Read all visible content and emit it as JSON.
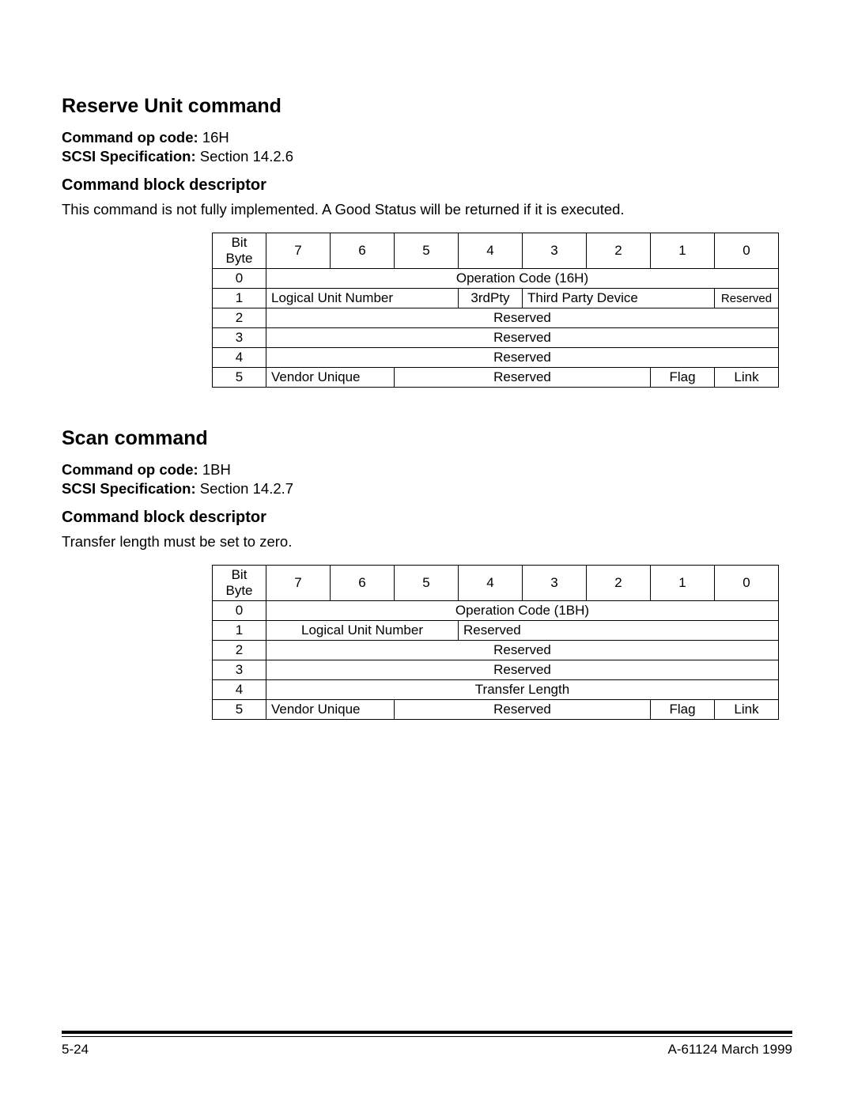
{
  "section1": {
    "title": "Reserve Unit command",
    "opcode_label": "Command op code:",
    "opcode_value": "16H",
    "spec_label": "SCSI Specification:",
    "spec_value": "Section 14.2.6",
    "cbd_title": "Command block descriptor",
    "body": "This command is not fully implemented. A Good Status will be returned if it is executed.",
    "table": {
      "header_bit": "Bit",
      "header_byte": "Byte",
      "bits": [
        "7",
        "6",
        "5",
        "4",
        "3",
        "2",
        "1",
        "0"
      ],
      "rows": {
        "r0_byte": "0",
        "r0_val": "Operation Code (16H)",
        "r1_byte": "1",
        "r1_lun": "Logical Unit Number",
        "r1_3rd": "3rdPty",
        "r1_tpd": "Third Party Device",
        "r1_rsv": "Reserved",
        "r2_byte": "2",
        "r2_val": "Reserved",
        "r3_byte": "3",
        "r3_val": "Reserved",
        "r4_byte": "4",
        "r4_val": "Reserved",
        "r5_byte": "5",
        "r5_vu": "Vendor Unique",
        "r5_rsv": "Reserved",
        "r5_flag": "Flag",
        "r5_link": "Link"
      }
    }
  },
  "section2": {
    "title": "Scan command",
    "opcode_label": "Command op code:",
    "opcode_value": "1BH",
    "spec_label": "SCSI Specification:",
    "spec_value": "Section 14.2.7",
    "cbd_title": "Command block descriptor",
    "body": "Transfer length must be set to zero.",
    "table": {
      "header_bit": "Bit",
      "header_byte": "Byte",
      "bits": [
        "7",
        "6",
        "5",
        "4",
        "3",
        "2",
        "1",
        "0"
      ],
      "rows": {
        "r0_byte": "0",
        "r0_val": "Operation Code (1BH)",
        "r1_byte": "1",
        "r1_lun": "Logical Unit Number",
        "r1_rsv": "Reserved",
        "r2_byte": "2",
        "r2_val": "Reserved",
        "r3_byte": "3",
        "r3_val": "Reserved",
        "r4_byte": "4",
        "r4_val": "Transfer Length",
        "r5_byte": "5",
        "r5_vu": "Vendor Unique",
        "r5_rsv": "Reserved",
        "r5_flag": "Flag",
        "r5_link": "Link"
      }
    }
  },
  "footer": {
    "left": "5-24",
    "right": "A-61124  March 1999"
  }
}
